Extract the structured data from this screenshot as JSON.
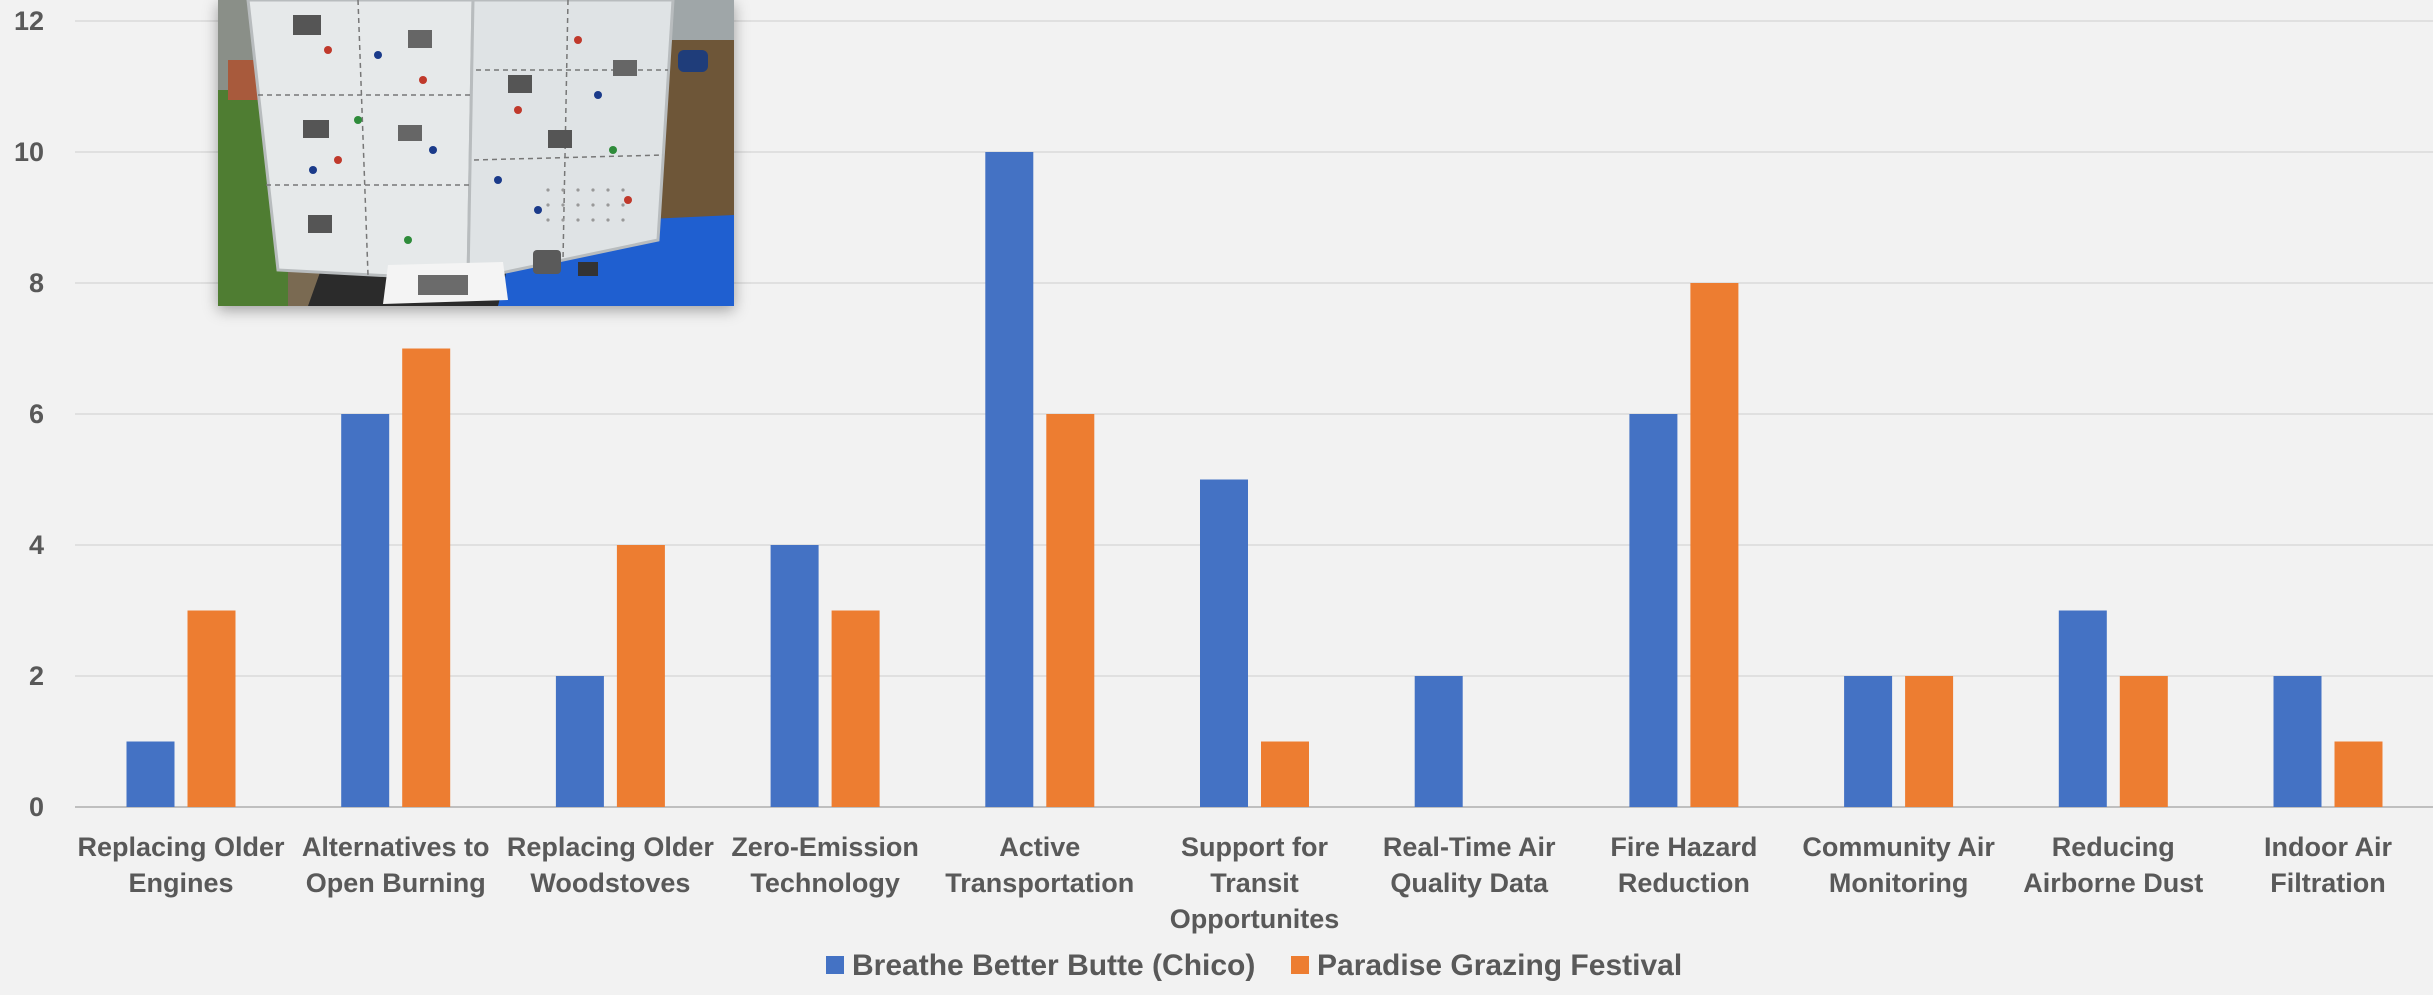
{
  "chart_data": {
    "type": "bar",
    "title": "",
    "xlabel": "",
    "ylabel": "",
    "ylim": [
      0,
      12
    ],
    "yticks": [
      0,
      2,
      4,
      6,
      8,
      10,
      12
    ],
    "grid": true,
    "legend_position": "bottom",
    "categories": [
      [
        "Replacing Older",
        "Engines"
      ],
      [
        "Alternatives to",
        "Open Burning"
      ],
      [
        "Replacing Older",
        "Woodstoves"
      ],
      [
        "Zero-Emission",
        "Technology"
      ],
      [
        "Active",
        "Transportation"
      ],
      [
        "Support for",
        "Transit",
        "Opportunites"
      ],
      [
        "Real-Time Air",
        "Quality Data"
      ],
      [
        "Fire Hazard",
        "Reduction"
      ],
      [
        "Community Air",
        "Monitoring"
      ],
      [
        "Reducing",
        "Airborne Dust"
      ],
      [
        "Indoor Air",
        "Filtration"
      ]
    ],
    "series": [
      {
        "name": "Breathe Better Butte (Chico)",
        "color": "#4472c4",
        "values": [
          1,
          6,
          2,
          4,
          10,
          5,
          2,
          6,
          2,
          3,
          2
        ]
      },
      {
        "name": "Paradise Grazing Festival",
        "color": "#ed7d31",
        "values": [
          3,
          7,
          4,
          3,
          6,
          1,
          0,
          8,
          2,
          2,
          1
        ]
      }
    ]
  },
  "inset_photo": {
    "subject": "event-display-board-photo"
  }
}
